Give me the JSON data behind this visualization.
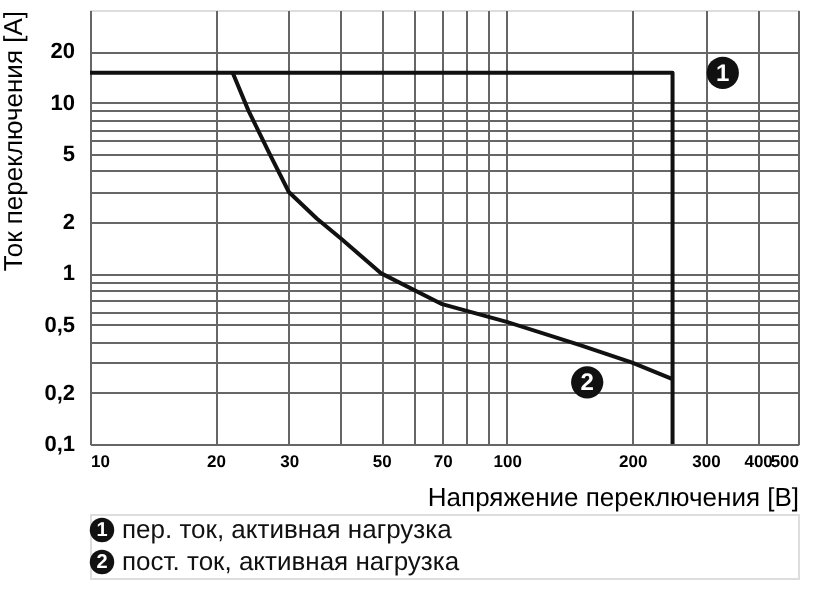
{
  "chart_data": {
    "type": "line",
    "xlabel": "Напряжение переключения [В]",
    "ylabel": "Ток переключения [A]",
    "log": "xy",
    "grid": true,
    "legend": "bottom",
    "marker": "none",
    "line_style": "solid",
    "xlim": [
      10,
      500
    ],
    "ylim": [
      0.1,
      35
    ],
    "xticks": [
      10,
      20,
      30,
      {
        "value": 40,
        "label": null
      },
      50,
      {
        "value": 60,
        "label": null
      },
      70,
      {
        "value": 80,
        "label": null
      },
      {
        "value": 90,
        "label": null
      },
      100,
      200,
      300,
      400,
      500
    ],
    "yticks": [
      {
        "value": 0.1,
        "label": "0,1"
      },
      {
        "value": 0.2,
        "label": "0,2"
      },
      {
        "value": 0.3,
        "label": null
      },
      {
        "value": 0.4,
        "label": null
      },
      {
        "value": 0.5,
        "label": "0,5"
      },
      {
        "value": 0.6,
        "label": null
      },
      {
        "value": 0.7,
        "label": null
      },
      {
        "value": 0.8,
        "label": null
      },
      {
        "value": 0.9,
        "label": null
      },
      1,
      2,
      {
        "value": 3,
        "label": null
      },
      {
        "value": 4,
        "label": null
      },
      5,
      {
        "value": 6,
        "label": null
      },
      {
        "value": 7,
        "label": null
      },
      {
        "value": 8,
        "label": null
      },
      {
        "value": 9,
        "label": null
      },
      10,
      20
    ],
    "series": [
      {
        "name": "пер. ток, активная нагрузка",
        "color": "#111111",
        "x": [
          10,
          250,
          250
        ],
        "values": [
          15,
          15,
          0.1
        ]
      },
      {
        "name": "пост. ток, активная нагрузка",
        "color": "#111111",
        "x": [
          22,
          24,
          27,
          30,
          35,
          40,
          50,
          70,
          100,
          150,
          200,
          250
        ],
        "values": [
          15,
          9,
          5,
          3,
          2.1,
          1.6,
          1.0,
          0.66,
          0.52,
          0.38,
          0.3,
          0.24
        ]
      }
    ],
    "annotations": [
      {
        "text": "1",
        "x": 330,
        "y": 15
      },
      {
        "text": "2",
        "x": 156,
        "y": 0.23
      }
    ]
  }
}
